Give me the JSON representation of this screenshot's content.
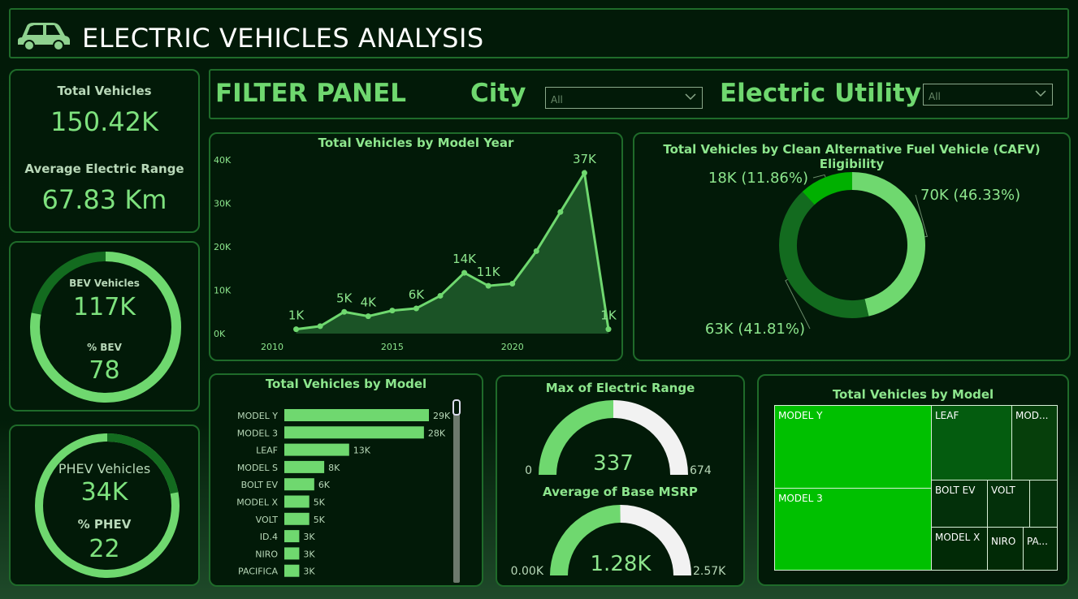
{
  "header": {
    "title": "ELECTRIC VEHICLES ANALYSIS",
    "icon": "car-icon"
  },
  "kpis": {
    "total_vehicles_label": "Total Vehicles",
    "total_vehicles_value": "150.42K",
    "avg_range_label": "Average Electric Range",
    "avg_range_value": "67.83 Km"
  },
  "bev": {
    "label": "BEV Vehicles",
    "value": "117K",
    "pct_label": "% BEV",
    "pct_value": "78",
    "fraction": 0.78
  },
  "phev": {
    "label": "PHEV Vehicles",
    "value": "34K",
    "pct_label": "% PHEV",
    "pct_value": "22",
    "fraction": 0.22
  },
  "filter_panel": {
    "title": "FILTER PANEL",
    "city_label": "City",
    "city_value": "All",
    "utility_label": "Electric Utility",
    "utility_value": "All"
  },
  "colors": {
    "accent": "#6fd86f",
    "dark_green": "#136b1f",
    "bright_green": "#00c000",
    "panel_bg": "#021a08",
    "border": "#1f6b2a"
  },
  "chart_data": [
    {
      "type": "area",
      "title": "Total Vehicles by Model Year",
      "x": [
        2011,
        2012,
        2013,
        2014,
        2015,
        2016,
        2017,
        2018,
        2019,
        2020,
        2021,
        2022,
        2023,
        2024
      ],
      "values": [
        1000,
        1700,
        5000,
        4000,
        5300,
        5800,
        8700,
        14000,
        11000,
        11500,
        19000,
        28000,
        37000,
        1000
      ],
      "data_labels": [
        "1K",
        "",
        "5K",
        "4K",
        "",
        "6K",
        "",
        "14K",
        "11K",
        "",
        "",
        "",
        "37K",
        "1K"
      ],
      "x_ticks": [
        "2010",
        "2015",
        "2020"
      ],
      "y_ticks": [
        "0K",
        "10K",
        "20K",
        "30K",
        "40K"
      ],
      "xlim": [
        2010,
        2024
      ],
      "ylim": [
        0,
        40000
      ]
    },
    {
      "type": "pie",
      "title": "Total Vehicles by Clean Alternative Fuel Vehicle (CAFV) Eligibility",
      "values": [
        70,
        63,
        18
      ],
      "labels": [
        "70K (46.33%)",
        "63K (41.81%)",
        "18K (11.86%)"
      ],
      "colors": [
        "#6fd86f",
        "#136b1f",
        "#00b000"
      ]
    },
    {
      "type": "bar",
      "title": "Total Vehicles by Model",
      "categories": [
        "MODEL Y",
        "MODEL 3",
        "LEAF",
        "MODEL S",
        "BOLT EV",
        "MODEL X",
        "VOLT",
        "ID.4",
        "NIRO",
        "PACIFICA"
      ],
      "values": [
        29,
        28,
        13,
        8,
        6,
        5,
        5,
        3,
        3,
        3
      ],
      "data_labels": [
        "29K",
        "28K",
        "13K",
        "8K",
        "6K",
        "5K",
        "5K",
        "3K",
        "3K",
        "3K"
      ]
    },
    {
      "type": "gauge",
      "title": "Max of Electric Range",
      "value": 337,
      "min": 0,
      "max": 674,
      "value_label": "337",
      "min_label": "0",
      "max_label": "674"
    },
    {
      "type": "gauge",
      "title": "Average of Base MSRP",
      "value": 1.28,
      "min": 0,
      "max": 2.57,
      "value_label": "1.28K",
      "min_label": "0.00K",
      "max_label": "2.57K"
    },
    {
      "type": "treemap",
      "title": "Total Vehicles by Model",
      "labels": [
        "MODEL Y",
        "MODEL 3",
        "LEAF",
        "MOD...",
        "BOLT EV",
        "VOLT",
        "MODEL X",
        "NIRO",
        "PA..."
      ]
    }
  ]
}
